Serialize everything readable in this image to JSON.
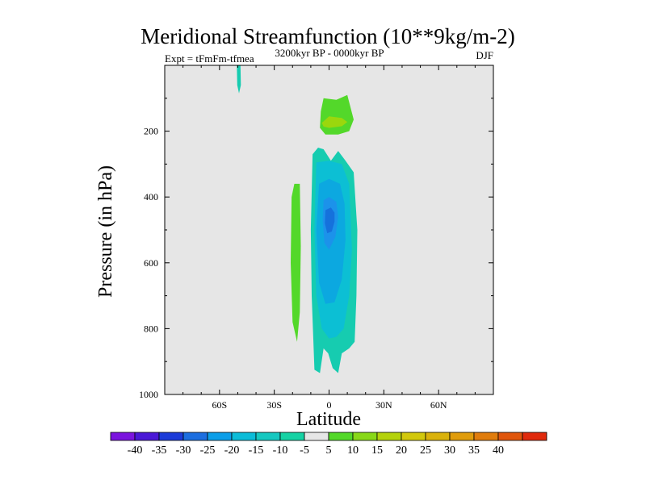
{
  "chart_data": {
    "type": "contour",
    "title": "Meridional Streamfunction (10**9kg/m-2)",
    "left_label": "Expt = tFmFm-tfmea",
    "center_label": "3200kyr BP - 0000kyr BP",
    "right_label": "DJF",
    "xlabel": "Latitude",
    "ylabel": "Pressure (in hPa)",
    "xlim": [
      -90,
      90
    ],
    "ylim": [
      1000,
      0
    ],
    "x_ticks": [
      {
        "value": -60,
        "label": "60S"
      },
      {
        "value": -30,
        "label": "30S"
      },
      {
        "value": 0,
        "label": "0"
      },
      {
        "value": 30,
        "label": "30N"
      },
      {
        "value": 60,
        "label": "60N"
      }
    ],
    "y_ticks": [
      {
        "value": 200,
        "label": "200"
      },
      {
        "value": 400,
        "label": "400"
      },
      {
        "value": 600,
        "label": "600"
      },
      {
        "value": 800,
        "label": "800"
      },
      {
        "value": 1000,
        "label": "1000"
      }
    ],
    "y_minor_ticks": [
      100,
      300,
      500,
      700,
      900
    ],
    "x_minor_ticks": [
      -80,
      -70,
      -50,
      -40,
      -20,
      -10,
      10,
      20,
      40,
      50,
      70,
      80
    ],
    "background_color": "#e6e6e6",
    "regions": [
      {
        "name": "south-upper-blip",
        "color": "#16ccb0",
        "points": [
          [
            -50.5,
            0
          ],
          [
            -48.5,
            0
          ],
          [
            -48.3,
            60
          ],
          [
            -49.3,
            85
          ],
          [
            -50.3,
            60
          ]
        ]
      },
      {
        "name": "upper-positive-cell",
        "color": "#53d82a",
        "points": [
          [
            -4.5,
            140
          ],
          [
            -3,
            100
          ],
          [
            4,
            105
          ],
          [
            10,
            90
          ],
          [
            13.5,
            165
          ],
          [
            11,
            200
          ],
          [
            5,
            210
          ],
          [
            -2,
            210
          ],
          [
            -5,
            190
          ]
        ]
      },
      {
        "name": "upper-positive-core",
        "color": "#9bd70d",
        "points": [
          [
            -4,
            175
          ],
          [
            0,
            155
          ],
          [
            7,
            160
          ],
          [
            10,
            172
          ],
          [
            7,
            185
          ],
          [
            0,
            190
          ],
          [
            -3,
            186
          ]
        ]
      },
      {
        "name": "southern-positive-band",
        "color": "#53d82a",
        "points": [
          [
            -20.5,
            400
          ],
          [
            -19,
            360
          ],
          [
            -16,
            360
          ],
          [
            -15.5,
            550
          ],
          [
            -16,
            750
          ],
          [
            -17.5,
            840
          ],
          [
            -20,
            780
          ],
          [
            -21,
            600
          ]
        ]
      },
      {
        "name": "negative-outer",
        "color": "#16ccb0",
        "points": [
          [
            -9,
            270
          ],
          [
            -6,
            250
          ],
          [
            -3,
            255
          ],
          [
            1,
            290
          ],
          [
            5,
            260
          ],
          [
            9,
            290
          ],
          [
            13.5,
            325
          ],
          [
            15.5,
            500
          ],
          [
            15,
            700
          ],
          [
            14,
            840
          ],
          [
            11,
            860
          ],
          [
            7,
            875
          ],
          [
            5,
            935
          ],
          [
            2,
            920
          ],
          [
            -0.5,
            875
          ],
          [
            -3,
            860
          ],
          [
            -5,
            935
          ],
          [
            -8,
            925
          ],
          [
            -9.5,
            700
          ],
          [
            -10,
            500
          ]
        ]
      },
      {
        "name": "negative-15",
        "color": "#0cbfd4",
        "points": [
          [
            -7,
            295
          ],
          [
            0,
            290
          ],
          [
            7,
            300
          ],
          [
            11,
            360
          ],
          [
            12.5,
            560
          ],
          [
            11,
            700
          ],
          [
            8,
            800
          ],
          [
            4,
            825
          ],
          [
            0,
            830
          ],
          [
            -4,
            800
          ],
          [
            -7,
            700
          ],
          [
            -8,
            500
          ]
        ]
      },
      {
        "name": "negative-20",
        "color": "#0ca8e0",
        "points": [
          [
            -5.5,
            360
          ],
          [
            0,
            345
          ],
          [
            6,
            360
          ],
          [
            8.5,
            420
          ],
          [
            9,
            530
          ],
          [
            7,
            650
          ],
          [
            3,
            720
          ],
          [
            -2,
            725
          ],
          [
            -5.5,
            660
          ],
          [
            -7,
            500
          ]
        ]
      },
      {
        "name": "negative-25",
        "color": "#1c92ea",
        "points": [
          [
            -3,
            410
          ],
          [
            0,
            400
          ],
          [
            4,
            415
          ],
          [
            5,
            460
          ],
          [
            3.5,
            520
          ],
          [
            0,
            560
          ],
          [
            -2.5,
            540
          ],
          [
            -3.5,
            470
          ]
        ]
      },
      {
        "name": "negative-30",
        "color": "#1571dc",
        "points": [
          [
            -2,
            440
          ],
          [
            1,
            432
          ],
          [
            3,
            448
          ],
          [
            3,
            475
          ],
          [
            1.5,
            505
          ],
          [
            -1,
            510
          ],
          [
            -2.3,
            480
          ]
        ]
      }
    ],
    "colorbar": {
      "colors": [
        "#7b14de",
        "#4a18d6",
        "#1c3bd8",
        "#1c6ee0",
        "#0c9ee8",
        "#0cbcd8",
        "#16c8c0",
        "#16d2a4",
        "#e6e6e6",
        "#53d82a",
        "#88d818",
        "#b4d20c",
        "#d2c80c",
        "#dab20c",
        "#e09c0c",
        "#e07c0c",
        "#e0560c",
        "#e02a0c"
      ],
      "labels": [
        "-40",
        "-35",
        "-30",
        "-25",
        "-20",
        "-15",
        "-10",
        "-5",
        "5",
        "10",
        "15",
        "20",
        "25",
        "30",
        "35",
        "40"
      ]
    }
  }
}
